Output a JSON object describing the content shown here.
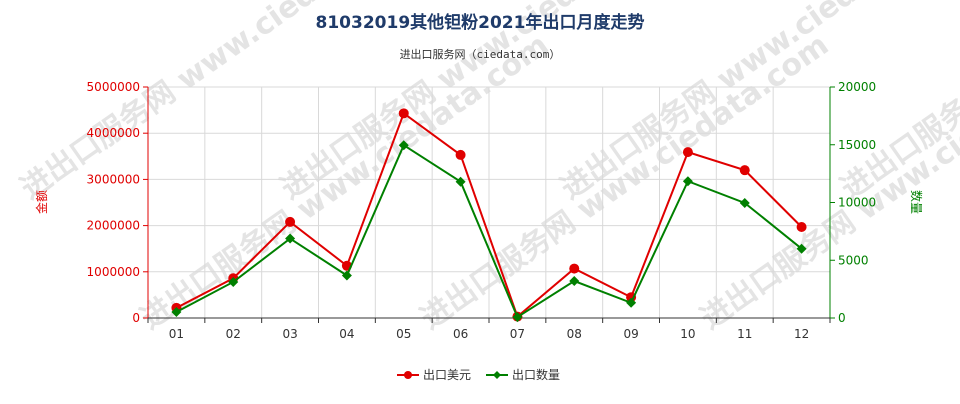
{
  "chart_data": {
    "type": "line",
    "title": "81032019其他钽粉2021年出口月度走势",
    "subtitle": "进出口服务网（ciedata.com）",
    "categories": [
      "01",
      "02",
      "03",
      "04",
      "05",
      "06",
      "07",
      "08",
      "09",
      "10",
      "11",
      "12"
    ],
    "y_left": {
      "label": "金额",
      "ylim": [
        0,
        5000000
      ],
      "ticks": [
        0,
        1000000,
        2000000,
        3000000,
        4000000,
        5000000
      ],
      "tick_labels": [
        "0",
        "1000000",
        "2000000",
        "3000000",
        "4000000",
        "5000000"
      ],
      "color": "#e00000"
    },
    "y_right": {
      "label": "数量",
      "ylim": [
        0,
        20000
      ],
      "ticks": [
        0,
        5000,
        10000,
        15000,
        20000
      ],
      "tick_labels": [
        "0",
        "5000",
        "10000",
        "15000",
        "20000"
      ],
      "color": "#008000"
    },
    "series": [
      {
        "name": "出口美元",
        "axis": "left",
        "color": "#e00000",
        "marker": "circle",
        "values": [
          220000,
          860000,
          2080000,
          1130000,
          4430000,
          3530000,
          30000,
          1070000,
          450000,
          3590000,
          3200000,
          1970000
        ]
      },
      {
        "name": "出口数量",
        "axis": "right",
        "color": "#008000",
        "marker": "diamond",
        "values": [
          520,
          3120,
          6880,
          3680,
          14960,
          11800,
          80,
          3200,
          1320,
          11840,
          9960,
          6000
        ]
      }
    ],
    "grid": true,
    "legend": "bottom-center"
  },
  "watermark": {
    "text": "进出口服务网 www.ciedata.com"
  }
}
